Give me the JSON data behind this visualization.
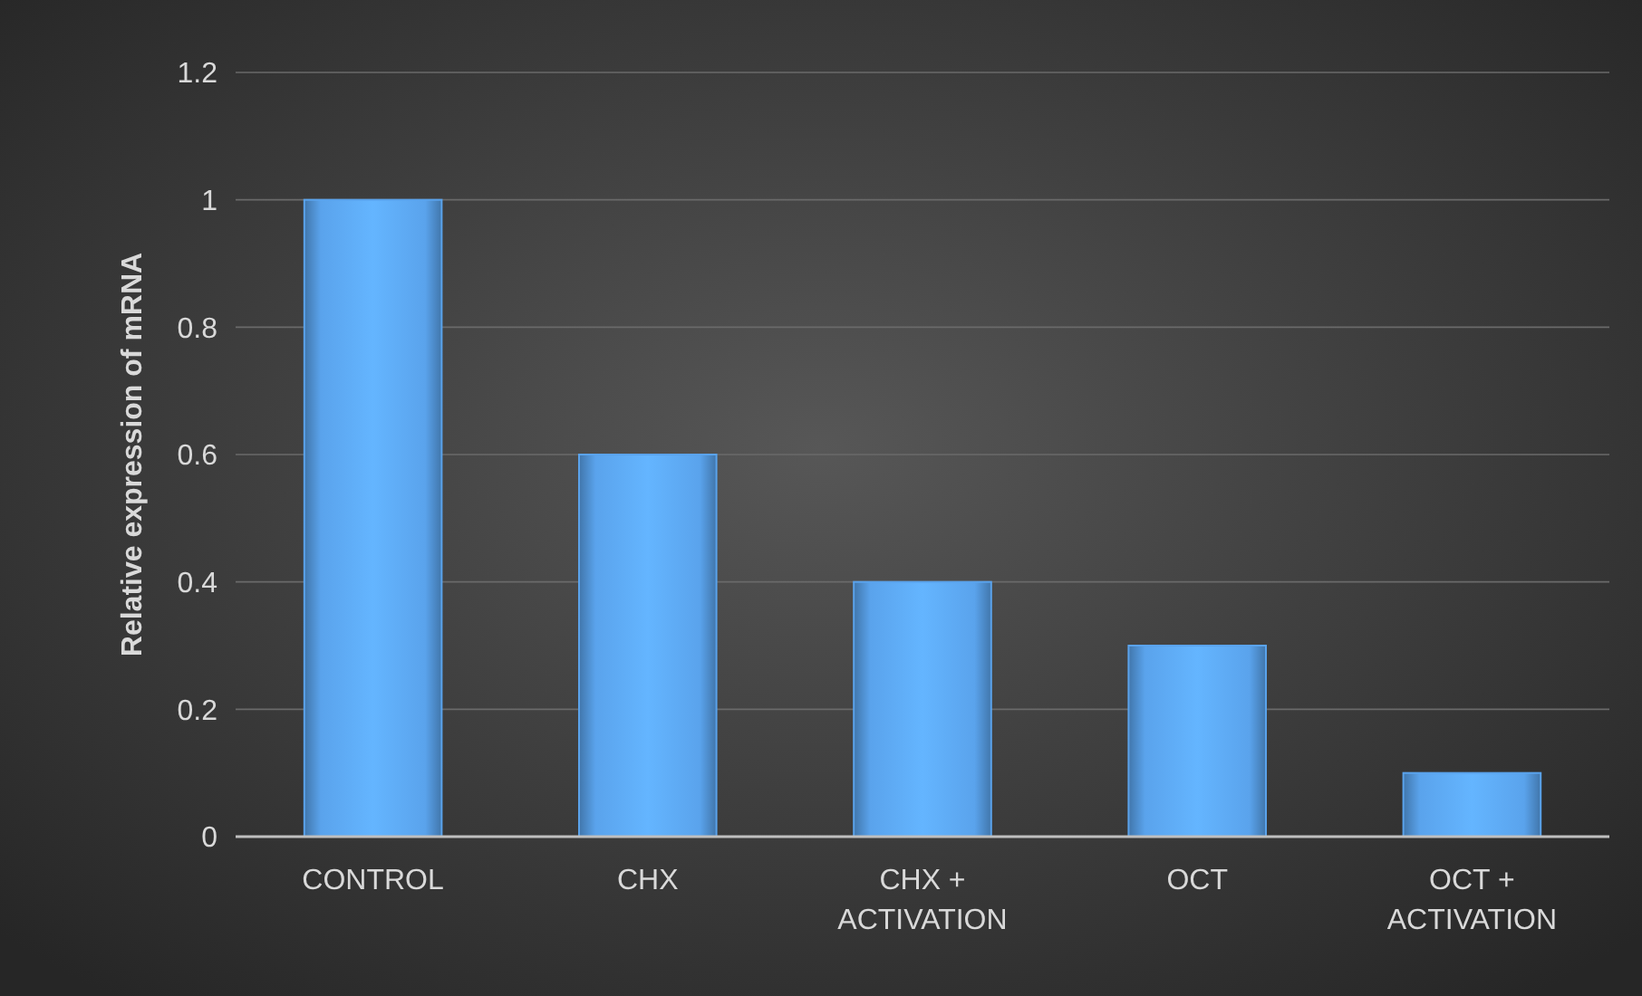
{
  "chart_data": {
    "type": "bar",
    "ylabel": "Relative expression of mRNA",
    "categories": [
      "CONTROL",
      "CHX",
      "CHX + ACTIVATION",
      "OCT",
      "OCT + ACTIVATION"
    ],
    "values": [
      1,
      0.6,
      0.4,
      0.3,
      0.1
    ],
    "color": "#5aa3ec",
    "ylim": [
      0,
      1.2
    ],
    "yticks": [
      0,
      0.2,
      0.4,
      0.6,
      0.8,
      1,
      1.2
    ],
    "grid": "y"
  }
}
